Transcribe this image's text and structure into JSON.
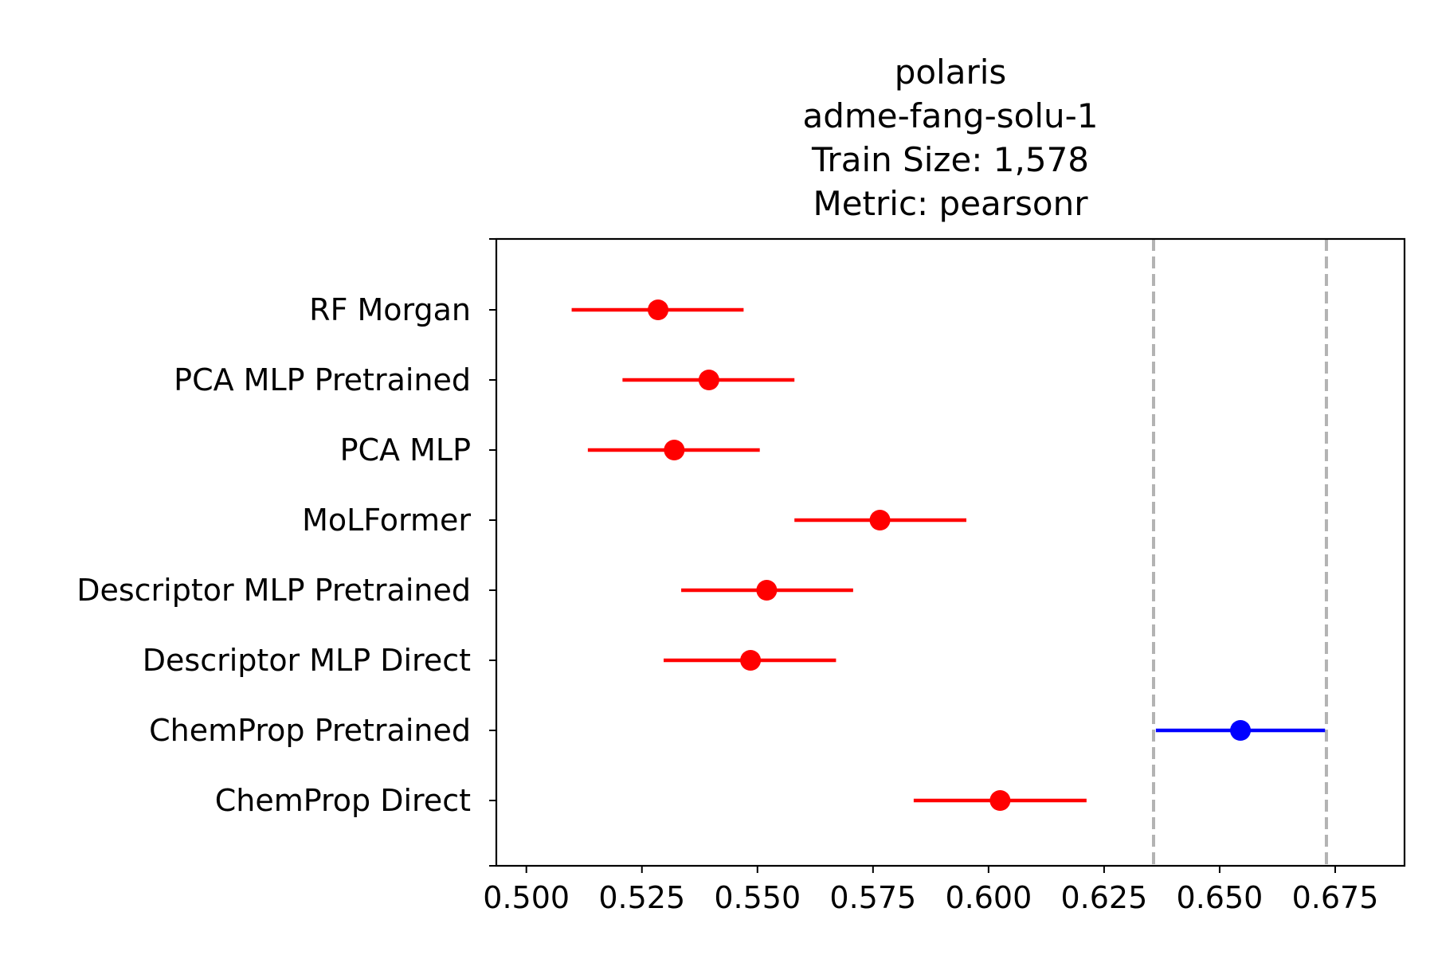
{
  "chart_data": {
    "type": "scatter",
    "title_lines": [
      "polaris",
      "adme-fang-solu-1",
      "Train Size: 1,578",
      "Metric: pearsonr"
    ],
    "xlabel": "",
    "ylabel": "",
    "xlim": [
      0.4935,
      0.69
    ],
    "xticks": [
      0.5,
      0.525,
      0.55,
      0.575,
      0.6,
      0.625,
      0.65,
      0.675
    ],
    "xtick_labels": [
      "0.500",
      "0.525",
      "0.550",
      "0.575",
      "0.600",
      "0.625",
      "0.650",
      "0.675"
    ],
    "grid": false,
    "reference_lines": [
      0.6357,
      0.6731
    ],
    "reference_line_color": "#b3b3b3",
    "models": [
      {
        "label": "RF Morgan",
        "value": 0.5285,
        "lower": 0.5098,
        "upper": 0.547,
        "color": "#ff0000"
      },
      {
        "label": "PCA MLP Pretrained",
        "value": 0.5395,
        "lower": 0.5208,
        "upper": 0.558,
        "color": "#ff0000"
      },
      {
        "label": "PCA MLP",
        "value": 0.532,
        "lower": 0.5133,
        "upper": 0.5505,
        "color": "#ff0000"
      },
      {
        "label": "MoLFormer",
        "value": 0.5765,
        "lower": 0.558,
        "upper": 0.5952,
        "color": "#ff0000"
      },
      {
        "label": "Descriptor MLP Pretrained",
        "value": 0.552,
        "lower": 0.5335,
        "upper": 0.5707,
        "color": "#ff0000"
      },
      {
        "label": "Descriptor MLP Direct",
        "value": 0.5485,
        "lower": 0.5297,
        "upper": 0.567,
        "color": "#ff0000"
      },
      {
        "label": "ChemProp Pretrained",
        "value": 0.6545,
        "lower": 0.6362,
        "upper": 0.6728,
        "color": "#0000ff"
      },
      {
        "label": "ChemProp Direct",
        "value": 0.6025,
        "lower": 0.5838,
        "upper": 0.6212,
        "color": "#ff0000"
      }
    ]
  }
}
